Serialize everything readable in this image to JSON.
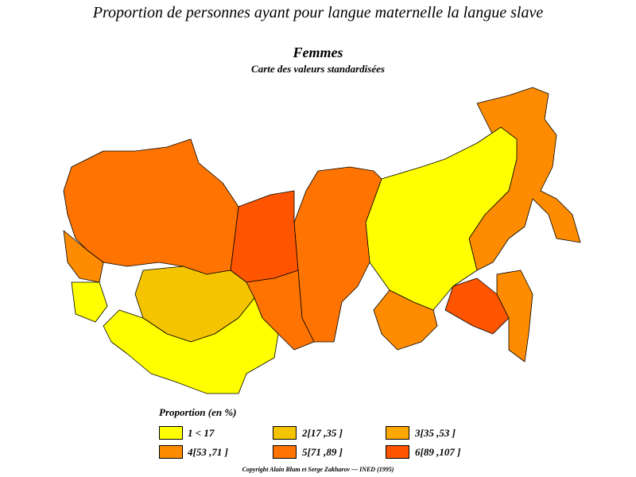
{
  "title": "Proportion de personnes ayant pour langue maternelle la langue slave",
  "subtitle": "Femmes",
  "caption": "Carte des valeurs standardisées",
  "legend": {
    "title": "Proportion (en %)",
    "items": [
      {
        "label": "1  <  17",
        "color": "#ffff00"
      },
      {
        "label": "2[17 ,35 ]",
        "color": "#f5c400"
      },
      {
        "label": "3[35 ,53 ]",
        "color": "#ffa800"
      },
      {
        "label": "4[53 ,71 ]",
        "color": "#ff8c00"
      },
      {
        "label": "5[71 ,89 ]",
        "color": "#ff7400"
      },
      {
        "label": "6[89 ,107 ]",
        "color": "#ff5500"
      }
    ]
  },
  "copyright": "Copyright Alain Blum et Serge Zakharov — INED (1995)"
}
